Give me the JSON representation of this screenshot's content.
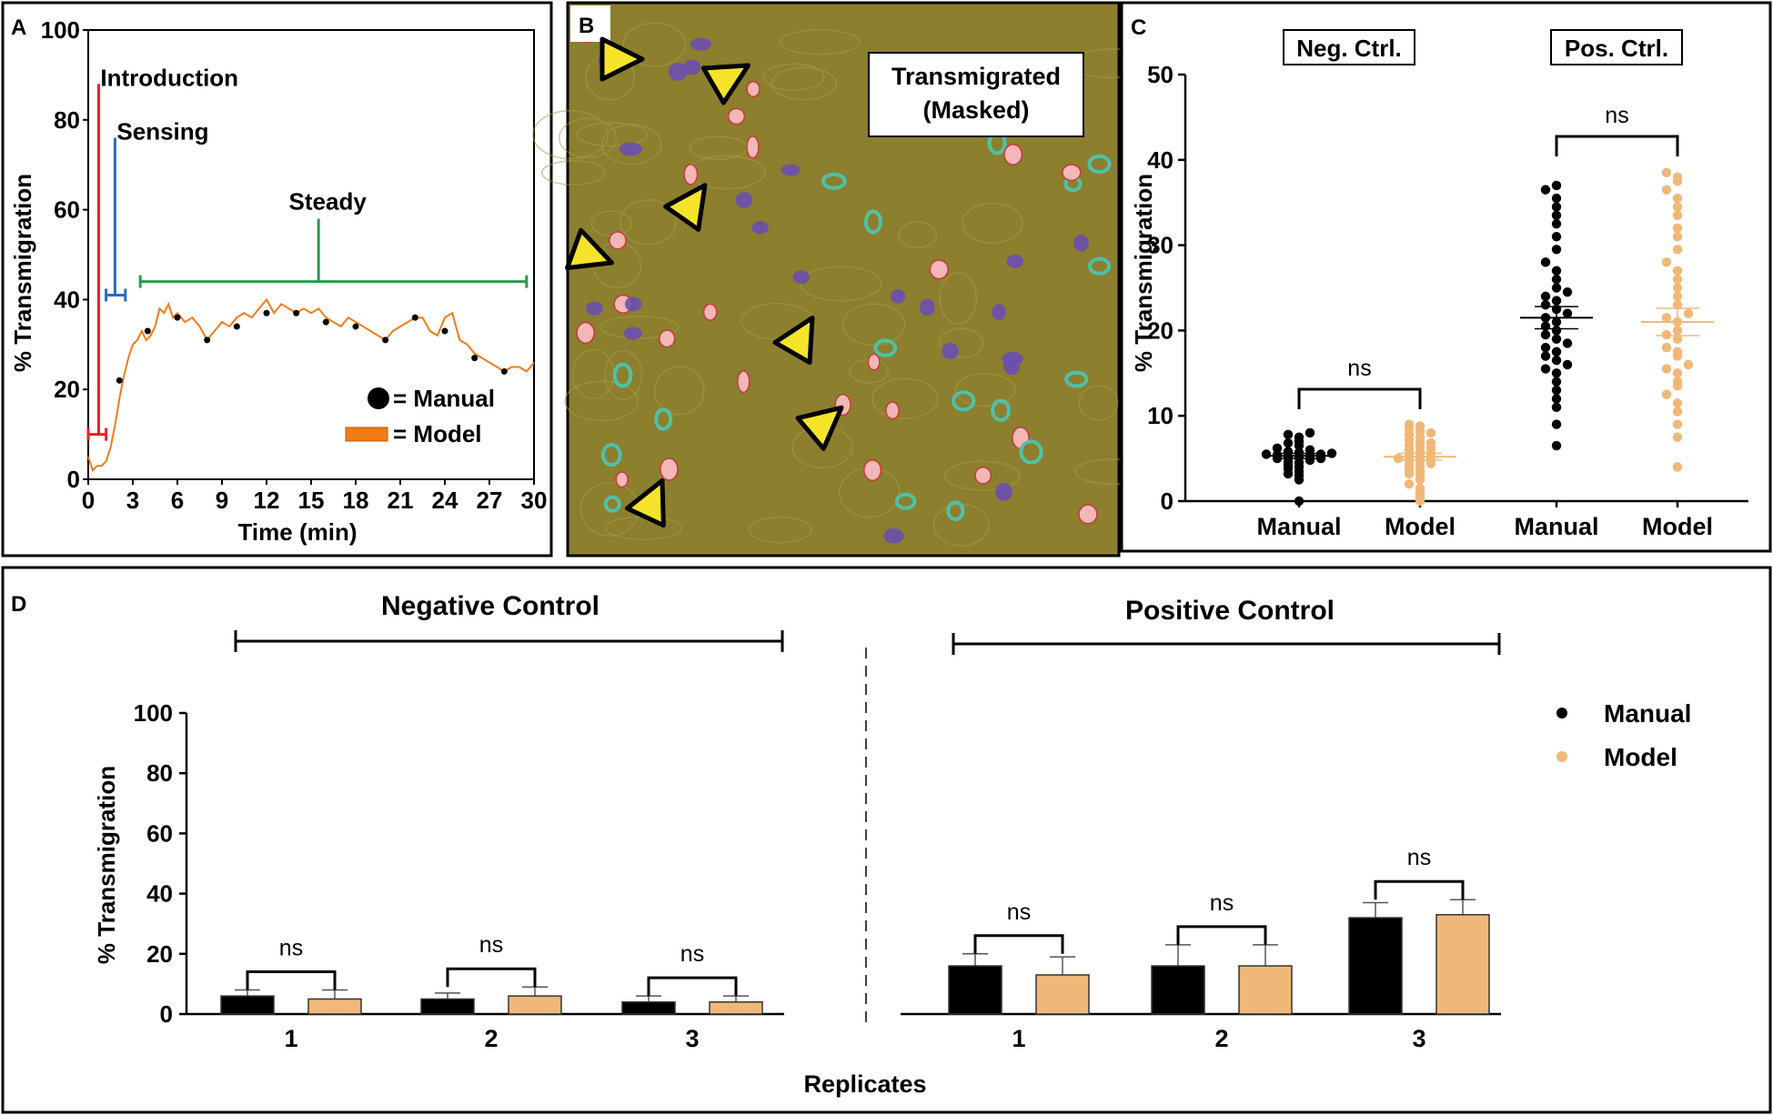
{
  "colors": {
    "manual": "#000000",
    "model": "#f0b878",
    "model_line": "#f07c18",
    "introduction": "#e8202a",
    "sensing": "#2a6cc0",
    "steady": "#2a9a50",
    "image_bg": "#8c7f2e",
    "cell_pink": "#f3b7b7",
    "cell_purple": "#6a4fb0",
    "cell_teal": "#4fc1a8",
    "arrow_fill": "#f5e42a"
  },
  "panel_letters": {
    "a": "A",
    "b": "B",
    "c": "C",
    "d": "D"
  },
  "chart_data": [
    {
      "id": "A",
      "type": "line",
      "title": "",
      "xlabel": "Time (min)",
      "ylabel": "% Transmigration",
      "xlim": [
        0,
        30
      ],
      "ylim": [
        0,
        100
      ],
      "xticks": [
        "0",
        "3",
        "6",
        "9",
        "12",
        "15",
        "18",
        "21",
        "24",
        "27",
        "30"
      ],
      "yticks": [
        "0",
        "20",
        "40",
        "60",
        "80",
        "100"
      ],
      "phases": [
        {
          "name": "Introduction",
          "start": 0.3,
          "end": 1.1
        },
        {
          "name": "Sensing",
          "start": 1.2,
          "end": 2.5
        },
        {
          "name": "Steady",
          "start": 3.5,
          "end": 29.5
        }
      ],
      "legend": {
        "manual": "= Manual",
        "model": "= Model",
        "position": "bottom-right"
      },
      "series": [
        {
          "name": "Model",
          "x": [
            0,
            0.3,
            0.6,
            0.9,
            1.2,
            1.5,
            1.8,
            2.1,
            2.4,
            2.7,
            3.0,
            3.3,
            3.6,
            3.9,
            4.2,
            4.5,
            4.8,
            5.1,
            5.4,
            5.7,
            6.0,
            6.5,
            7.0,
            7.5,
            8.0,
            8.5,
            9.0,
            9.5,
            10.0,
            10.5,
            11.0,
            11.5,
            12.0,
            12.5,
            13.0,
            13.5,
            14.0,
            14.5,
            15.0,
            15.5,
            16.0,
            16.5,
            17.0,
            17.5,
            18.0,
            18.5,
            19.0,
            19.5,
            20.0,
            20.5,
            21.0,
            21.5,
            22.0,
            22.5,
            23.0,
            23.5,
            24.0,
            24.5,
            25.0,
            25.5,
            26.0,
            26.5,
            27.0,
            27.5,
            28.0,
            28.5,
            29.0,
            29.5,
            30.0
          ],
          "y": [
            5,
            2,
            3,
            3,
            4,
            7,
            12,
            18,
            23,
            27,
            30,
            31,
            33,
            31,
            32,
            34,
            38,
            37,
            39,
            36,
            37,
            35,
            36,
            34,
            31,
            33,
            35,
            34,
            36,
            37,
            36,
            38,
            40,
            37,
            39,
            38,
            37,
            38,
            37,
            38,
            36,
            35,
            34,
            36,
            35,
            34,
            33,
            32,
            31,
            33,
            34,
            35,
            36,
            36,
            33,
            32,
            36,
            37,
            31,
            30,
            28,
            27,
            26,
            25,
            24,
            25,
            25,
            24,
            26
          ]
        },
        {
          "name": "Manual",
          "x": [
            2.1,
            4.0,
            6.0,
            8.0,
            10.0,
            12.0,
            14.0,
            16.0,
            18.0,
            20.0,
            22.0,
            24.0,
            26.0,
            28.0
          ],
          "y": [
            22,
            33,
            36,
            31,
            34,
            37,
            37,
            35,
            34,
            31,
            36,
            33,
            27,
            24
          ]
        }
      ]
    },
    {
      "id": "C",
      "type": "scatter",
      "ylabel": "% Transmigration",
      "ylim": [
        0,
        50
      ],
      "yticks": [
        "0",
        "10",
        "20",
        "30",
        "40",
        "50"
      ],
      "categories": [
        "Manual",
        "Model",
        "Manual",
        "Model"
      ],
      "group_labels": [
        "Neg. Ctrl.",
        "Pos. Ctrl."
      ],
      "annotations": [
        "ns",
        "ns"
      ],
      "series": [
        {
          "name": "Neg. Ctrl. Manual",
          "mean": 5.3,
          "sem": 0.3,
          "values": [
            0.0,
            2.5,
            3.0,
            3.2,
            3.5,
            3.8,
            4.0,
            4.2,
            4.5,
            4.6,
            4.8,
            5.0,
            5.0,
            5.1,
            5.2,
            5.3,
            5.4,
            5.5,
            5.5,
            5.6,
            5.7,
            5.8,
            6.0,
            6.2,
            6.5,
            6.8,
            7.0,
            7.5,
            7.8,
            8.0
          ]
        },
        {
          "name": "Neg. Ctrl. Model",
          "mean": 5.2,
          "sem": 0.4,
          "values": [
            0.0,
            0.5,
            1.0,
            1.5,
            2.0,
            2.5,
            3.0,
            3.2,
            3.5,
            3.8,
            4.0,
            4.2,
            4.4,
            4.6,
            4.8,
            5.0,
            5.0,
            5.2,
            5.4,
            5.6,
            5.8,
            6.0,
            6.2,
            6.4,
            6.6,
            6.8,
            7.0,
            7.2,
            7.5,
            7.8,
            8.0,
            8.2,
            8.5,
            8.8,
            9.0
          ]
        },
        {
          "name": "Pos. Ctrl. Manual",
          "mean": 21.5,
          "sem": 1.3,
          "values": [
            6.5,
            9.0,
            11.0,
            12.0,
            13.0,
            14.0,
            15.0,
            15.5,
            16.0,
            16.5,
            17.0,
            17.5,
            18.0,
            18.5,
            19.0,
            19.5,
            20.0,
            20.5,
            21.0,
            21.5,
            22.0,
            22.5,
            23.0,
            23.5,
            24.0,
            24.5,
            25.0,
            26.0,
            27.0,
            28.0,
            29.5,
            31.0,
            32.5,
            33.5,
            34.5,
            35.5,
            36.5,
            37.0
          ]
        },
        {
          "name": "Pos. Ctrl. Model",
          "mean": 21.0,
          "sem": 1.6,
          "values": [
            4.0,
            7.5,
            9.0,
            10.5,
            11.5,
            12.5,
            13.5,
            14.0,
            15.0,
            15.5,
            16.0,
            17.0,
            17.5,
            18.0,
            19.0,
            19.5,
            20.0,
            21.0,
            21.5,
            22.0,
            23.0,
            24.0,
            25.0,
            26.0,
            27.0,
            28.0,
            29.5,
            31.0,
            32.0,
            33.5,
            34.5,
            35.5,
            36.5,
            37.5,
            38.0,
            38.5
          ]
        }
      ]
    },
    {
      "id": "D",
      "type": "bar",
      "xlabel": "Replicates",
      "ylabel": "% Transmigration",
      "ylim": [
        0,
        100
      ],
      "yticks": [
        "0",
        "20",
        "40",
        "60",
        "80",
        "100"
      ],
      "group_titles": [
        "Negative Control",
        "Positive Control"
      ],
      "categories": [
        "1",
        "2",
        "3"
      ],
      "legend": {
        "entries": [
          "Manual",
          "Model"
        ],
        "position": "top-right"
      },
      "annotation": "ns",
      "series": [
        {
          "name": "Negative Control Manual",
          "values": [
            6,
            5,
            4
          ],
          "errors": [
            2,
            2,
            2
          ]
        },
        {
          "name": "Negative Control Model",
          "values": [
            5,
            6,
            4
          ],
          "errors": [
            3,
            3,
            2
          ]
        },
        {
          "name": "Positive Control Manual",
          "values": [
            16,
            16,
            32
          ],
          "errors": [
            4,
            7,
            5
          ]
        },
        {
          "name": "Positive Control Model",
          "values": [
            13,
            16,
            33
          ],
          "errors": [
            6,
            7,
            5
          ]
        }
      ]
    }
  ],
  "panel_b": {
    "label": "Transmigrated\n(Masked)",
    "label_line1": "Transmigrated",
    "label_line2": "(Masked)"
  }
}
